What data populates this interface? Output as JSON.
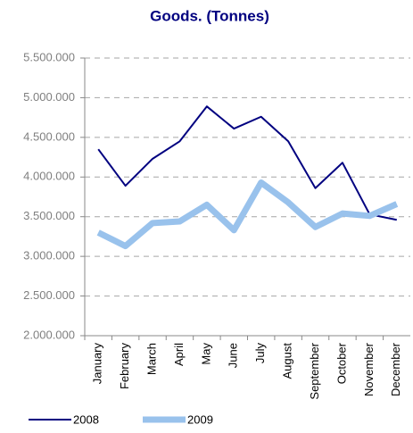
{
  "chart_data": {
    "type": "line",
    "title": "Goods. (Tonnes)",
    "categories": [
      "January",
      "February",
      "March",
      "April",
      "May",
      "June",
      "July",
      "August",
      "September",
      "October",
      "November",
      "December"
    ],
    "series": [
      {
        "name": "2008",
        "color": "#000080",
        "values": [
          4350000,
          3890000,
          4230000,
          4450000,
          4890000,
          4610000,
          4760000,
          4450000,
          3860000,
          4180000,
          3530000,
          3460000
        ]
      },
      {
        "name": "2009",
        "color": "#99c2ec",
        "values": [
          3300000,
          3130000,
          3420000,
          3440000,
          3650000,
          3330000,
          3930000,
          3680000,
          3370000,
          3540000,
          3510000,
          3660000
        ]
      }
    ],
    "ylim": [
      2000000,
      5500000
    ],
    "yticks": [
      {
        "value": 2000000,
        "label": "2.000.000"
      },
      {
        "value": 2500000,
        "label": "2.500.000"
      },
      {
        "value": 3000000,
        "label": "3.000.000"
      },
      {
        "value": 3500000,
        "label": "3.500.000"
      },
      {
        "value": 4000000,
        "label": "4.000.000"
      },
      {
        "value": 4500000,
        "label": "4.500.000"
      },
      {
        "value": 5000000,
        "label": "5.000.000"
      },
      {
        "value": 5500000,
        "label": "5.500.000"
      }
    ],
    "grid": true,
    "legend": "bottom"
  }
}
